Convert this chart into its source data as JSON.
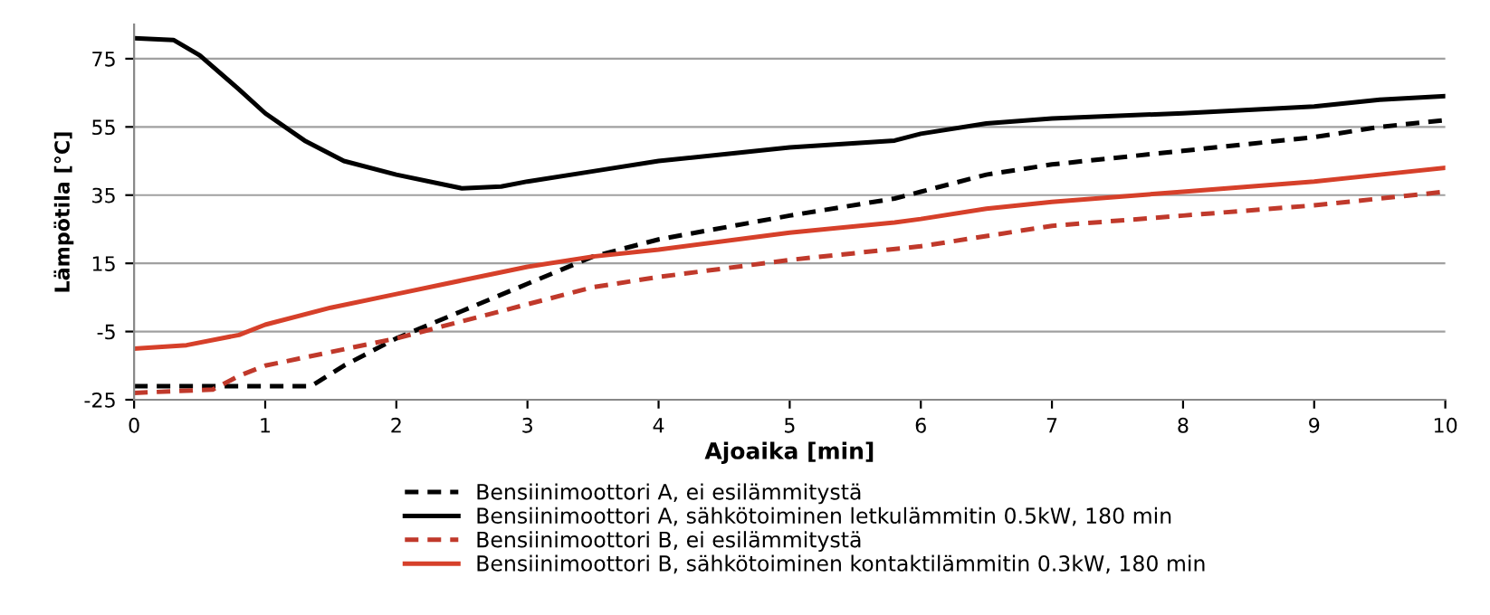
{
  "chart_data": {
    "type": "line",
    "xlabel": "Ajoaika [min]",
    "ylabel": "Lämpötila [°C]",
    "xlim": [
      0,
      10
    ],
    "xticks": [
      0,
      1,
      2,
      3,
      4,
      5,
      6,
      7,
      8,
      9,
      10
    ],
    "ylim": [
      -25,
      85
    ],
    "yticks": [
      -25,
      -5,
      15,
      35,
      55,
      75
    ],
    "grid": "y",
    "legend": "bottom",
    "marker": "none",
    "series": [
      {
        "name": "Bensiinimoottori A, ei esilämmitystä",
        "color": "#000000",
        "line_style": "dashed",
        "x": [
          0,
          1.35,
          1.6,
          2,
          2.5,
          3,
          3.5,
          4,
          5,
          5.8,
          6,
          6.5,
          7,
          8,
          9,
          9.5,
          10
        ],
        "values": [
          -21,
          -21,
          -15,
          -7,
          1,
          9,
          17,
          22,
          29,
          34,
          36,
          41,
          44,
          48,
          52,
          55,
          57
        ]
      },
      {
        "name": "Bensiinimoottori A, sähkötoiminen letkulämmitin 0.5kW, 180 min",
        "color": "#000000",
        "line_style": "solid",
        "x": [
          0,
          0.3,
          0.5,
          0.8,
          1,
          1.3,
          1.6,
          2,
          2.5,
          2.8,
          3,
          3.5,
          4,
          5,
          5.8,
          6,
          6.5,
          7,
          8,
          9,
          9.5,
          10
        ],
        "values": [
          81,
          80.5,
          76,
          66,
          59,
          51,
          45,
          41,
          37,
          37.5,
          39,
          42,
          45,
          49,
          51,
          53,
          56,
          57.5,
          59,
          61,
          63,
          64
        ]
      },
      {
        "name": "Bensiinimoottori B, ei esilämmitystä",
        "color": "#c0392b",
        "line_style": "dashed",
        "x": [
          0,
          0.6,
          0.8,
          1,
          1.5,
          2,
          2.5,
          3,
          3.5,
          4,
          5,
          6,
          6.5,
          7,
          8,
          9,
          10
        ],
        "values": [
          -23,
          -22,
          -18,
          -15,
          -11,
          -7,
          -2,
          3,
          8,
          11,
          16,
          20,
          23,
          26,
          29,
          32,
          36
        ]
      },
      {
        "name": "Bensiinimoottori B, sähkötoiminen kontaktilämmitin 0.3kW, 180 min",
        "color": "#d6402a",
        "line_style": "solid",
        "x": [
          0,
          0.4,
          0.8,
          1,
          1.5,
          2,
          2.5,
          3,
          3.5,
          4,
          5,
          5.8,
          6,
          6.5,
          7,
          8,
          9,
          9.5,
          10
        ],
        "values": [
          -10,
          -9,
          -6,
          -3,
          2,
          6,
          10,
          14,
          17,
          19,
          24,
          27,
          28,
          31,
          33,
          36,
          39,
          41,
          43
        ]
      }
    ]
  }
}
